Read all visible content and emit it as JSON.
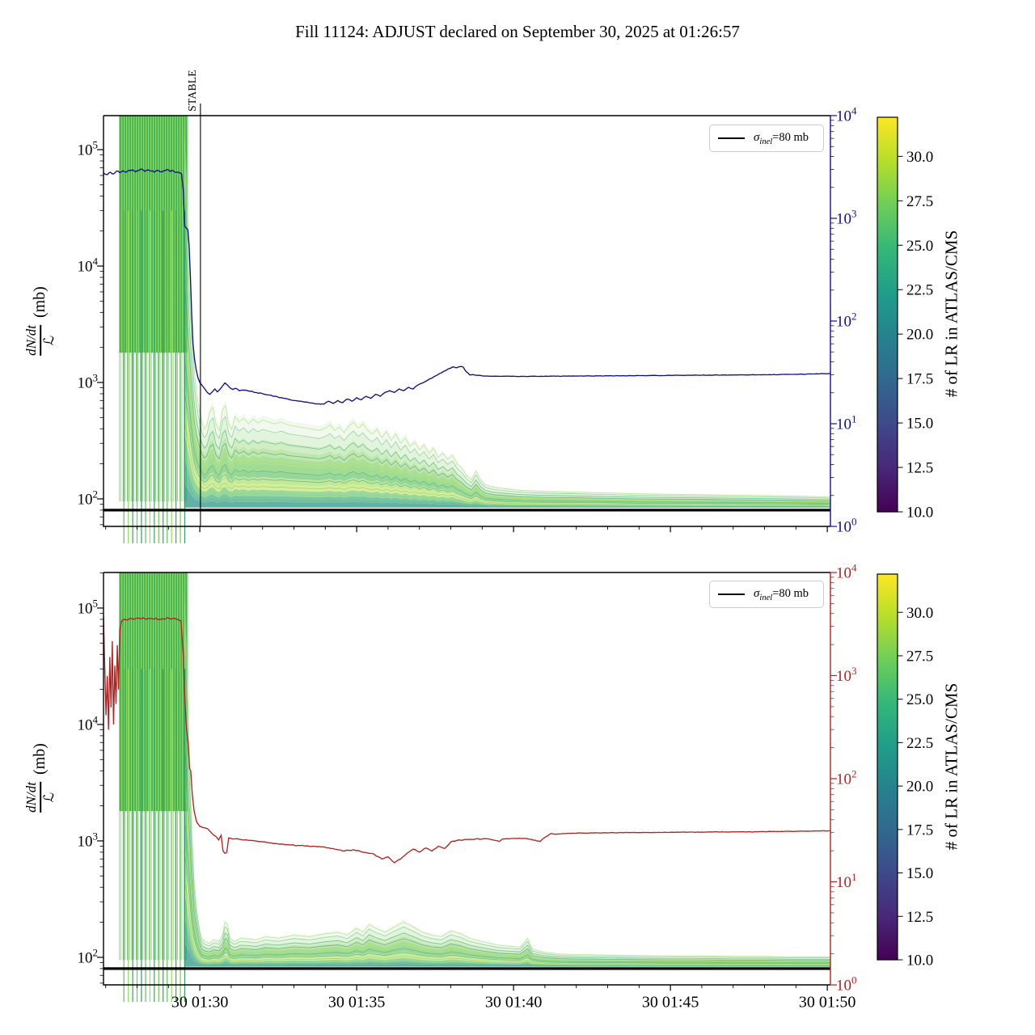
{
  "chart_data": {
    "type": "line",
    "title": "Fill 11124: ADJUST declared on September 30, 2025 at 01:26:57",
    "y_axis": {
      "numerator": "dN/dt",
      "denominator": "ℒ",
      "unit": "(mb)",
      "scale": "log",
      "tick_exponents": [
        2,
        3,
        4,
        5
      ]
    },
    "right_axis": {
      "scale": "log",
      "tick_exponents": [
        0,
        1,
        2,
        3,
        4
      ]
    },
    "x_axis": {
      "range": [
        26.93,
        50.1
      ],
      "major_ticks": [
        {
          "t": 30,
          "label": "30 01:30"
        },
        {
          "t": 35,
          "label": "30 01:35"
        },
        {
          "t": 40,
          "label": "30 01:40"
        },
        {
          "t": 45,
          "label": "30 01:45"
        },
        {
          "t": 50,
          "label": "30 01:50"
        }
      ],
      "minor_step": 1
    },
    "legend": {
      "sigma": "σ",
      "sub": "inel",
      "rest": "=80 mb",
      "line_color": "#000000"
    },
    "stable": {
      "t": 30.02,
      "label": "STABLE"
    },
    "colorbar": {
      "label": "# of LR in ATLAS/CMS",
      "vmin": 10,
      "vmax": 32.2,
      "ticks": [
        {
          "v": 10.0,
          "label": "10.0"
        },
        {
          "v": 12.5,
          "label": "12.5"
        },
        {
          "v": 15.0,
          "label": "15.0"
        },
        {
          "v": 17.5,
          "label": "17.5"
        },
        {
          "v": 20.0,
          "label": "20.0"
        },
        {
          "v": 22.5,
          "label": "22.5"
        },
        {
          "v": 25.0,
          "label": "25.0"
        },
        {
          "v": 27.5,
          "label": "27.5"
        },
        {
          "v": 30.0,
          "label": "30.0"
        }
      ],
      "viridis": [
        "#440154",
        "#482878",
        "#3e4989",
        "#31688e",
        "#26828e",
        "#1f9e89",
        "#35b779",
        "#6ece58",
        "#b5de2b",
        "#fde725"
      ]
    },
    "band_palette": [
      [
        "#ddf0d8",
        0.4
      ],
      [
        "#bfe7b2",
        0.45
      ],
      [
        "#a2dd8a",
        0.5
      ],
      [
        "#8ad468",
        0.55
      ],
      [
        "#74cc53",
        0.6
      ],
      [
        "#62c44f",
        0.6
      ],
      [
        "#52bb57",
        0.6
      ],
      [
        "#8fd747",
        0.55
      ],
      [
        "#aedc35",
        0.5
      ],
      [
        "#57be63",
        0.6
      ],
      [
        "#33a873",
        0.65
      ],
      [
        "#1f8e80",
        0.7
      ]
    ],
    "strand_palette": [
      "#8fd744",
      "#4db56a",
      "#2d9d76",
      "#1f8a82",
      "#a8dc32",
      "#3fae53",
      "#27957c",
      "#6cc94e"
    ],
    "stripe_palette": [
      "#5ec155",
      "#8edd5e",
      "#3aa55c",
      "#6fcb4f",
      "#2f9e5f"
    ],
    "panels": [
      {
        "name": "top",
        "line_color": "#10108c",
        "ylim": [
          58,
          196000
        ],
        "sigma_mb": 80,
        "show_stable": true,
        "injection": {
          "t0": 27.42,
          "t1": 29.62,
          "stripes": [
            27.58,
            27.72,
            27.86,
            28.0,
            28.14,
            28.27,
            28.41,
            28.55,
            28.69,
            28.83,
            28.96,
            29.1,
            29.24,
            29.38,
            29.52
          ]
        },
        "line": {
          "t": [
            26.93,
            27.05,
            27.15,
            27.25,
            27.35,
            27.45,
            27.55,
            27.65,
            27.75,
            27.85,
            27.95,
            28.05,
            28.15,
            28.25,
            28.35,
            28.45,
            28.55,
            28.65,
            28.75,
            28.85,
            28.95,
            29.05,
            29.15,
            29.25,
            29.35,
            29.42,
            29.47,
            29.52,
            29.58,
            29.62,
            29.66,
            29.7,
            29.74,
            29.78,
            29.83,
            29.88,
            29.94,
            30.0,
            30.08,
            30.16,
            30.24,
            30.32,
            30.4,
            30.48,
            30.56,
            30.64,
            30.72,
            30.8,
            30.88,
            30.96,
            31.05,
            31.15,
            31.25,
            31.4,
            31.6,
            31.8,
            32.0,
            32.2,
            32.4,
            32.6,
            32.8,
            33.0,
            33.2,
            33.4,
            33.6,
            33.8,
            33.95,
            34.1,
            34.25,
            34.4,
            34.55,
            34.7,
            34.85,
            35.0,
            35.15,
            35.3,
            35.45,
            35.6,
            35.75,
            35.9,
            36.05,
            36.2,
            36.35,
            36.5,
            36.65,
            36.8,
            36.95,
            37.1,
            37.25,
            37.4,
            37.55,
            37.7,
            37.85,
            38.0,
            38.1,
            38.2,
            38.3,
            38.4,
            38.5,
            38.6,
            38.7,
            38.85,
            39.0,
            39.3,
            39.7,
            40.2,
            41.0,
            42.0,
            43.0,
            44.0,
            45.0,
            46.0,
            47.0,
            48.0,
            49.0,
            49.6,
            50.1
          ],
          "v": [
            63000,
            61000,
            64000,
            62000,
            65500,
            63500,
            66000,
            64000,
            66500,
            67000,
            64500,
            66000,
            68000,
            65000,
            67000,
            65500,
            64000,
            66500,
            64500,
            66000,
            67500,
            65000,
            66000,
            64000,
            63500,
            62000,
            45000,
            22000,
            21000,
            20500,
            15000,
            8000,
            4000,
            2200,
            1600,
            1300,
            1100,
            1000,
            940,
            880,
            820,
            790,
            830,
            880,
            830,
            870,
            930,
            990,
            950,
            900,
            870,
            890,
            850,
            860,
            840,
            820,
            800,
            780,
            760,
            740,
            720,
            700,
            690,
            680,
            665,
            655,
            650,
            690,
            660,
            700,
            670,
            720,
            690,
            740,
            710,
            760,
            730,
            790,
            760,
            820,
            850,
            820,
            880,
            850,
            910,
            880,
            950,
            990,
            1040,
            1090,
            1150,
            1210,
            1270,
            1330,
            1360,
            1340,
            1370,
            1350,
            1230,
            1160,
            1170,
            1150,
            1140,
            1130,
            1130,
            1125,
            1130,
            1135,
            1140,
            1145,
            1150,
            1155,
            1160,
            1165,
            1175,
            1185,
            1195
          ]
        },
        "band": {
          "t": [
            29.5,
            29.58,
            29.66,
            29.74,
            29.82,
            29.9,
            29.98,
            30.06,
            30.14,
            30.22,
            30.32,
            30.42,
            30.52,
            30.62,
            30.72,
            30.82,
            30.92,
            31.02,
            31.12,
            31.25,
            31.4,
            31.55,
            31.7,
            31.85,
            32.0,
            32.2,
            32.4,
            32.6,
            32.8,
            33.0,
            33.2,
            33.4,
            33.6,
            33.8,
            34.0,
            34.15,
            34.3,
            34.45,
            34.6,
            34.75,
            34.9,
            35.05,
            35.2,
            35.35,
            35.5,
            35.65,
            35.8,
            35.95,
            36.1,
            36.25,
            36.4,
            36.55,
            36.7,
            36.85,
            37.0,
            37.15,
            37.3,
            37.45,
            37.6,
            37.75,
            37.9,
            38.05,
            38.2,
            38.35,
            38.5,
            38.65,
            38.8,
            38.95,
            39.1,
            39.4,
            39.8,
            40.3,
            41.0,
            42.0,
            43.0,
            44.0,
            45.0,
            46.0,
            47.0,
            48.0,
            49.0,
            50.1
          ],
          "top": [
            150000,
            60000,
            15000,
            4000,
            1500,
            900,
            650,
            500,
            430,
            460,
            620,
            680,
            470,
            420,
            640,
            700,
            480,
            430,
            560,
            500,
            540,
            480,
            530,
            490,
            520,
            500,
            480,
            500,
            470,
            460,
            450,
            440,
            430,
            420,
            440,
            470,
            420,
            450,
            400,
            460,
            500,
            440,
            480,
            420,
            390,
            430,
            360,
            410,
            340,
            390,
            320,
            360,
            300,
            330,
            280,
            310,
            260,
            290,
            240,
            260,
            230,
            250,
            210,
            190,
            165,
            150,
            180,
            150,
            135,
            128,
            124,
            120,
            118,
            116,
            114,
            112,
            111,
            110,
            109,
            108,
            107,
            105
          ],
          "bot": 84
        }
      },
      {
        "name": "bottom",
        "line_color": "#b22222",
        "ylim": [
          58,
          202000
        ],
        "sigma_mb": 80,
        "show_stable": false,
        "injection": {
          "t0": 27.42,
          "t1": 29.62,
          "stripes": [
            27.58,
            27.72,
            27.86,
            28.0,
            28.14,
            28.27,
            28.41,
            28.55,
            28.69,
            28.83,
            28.96,
            29.1,
            29.24,
            29.38,
            29.52
          ]
        },
        "line": {
          "t": [
            26.93,
            26.97,
            27.01,
            27.05,
            27.09,
            27.13,
            27.17,
            27.21,
            27.25,
            27.29,
            27.33,
            27.37,
            27.41,
            27.45,
            27.5,
            27.6,
            27.7,
            27.8,
            27.9,
            28.0,
            28.1,
            28.2,
            28.3,
            28.4,
            28.5,
            28.6,
            28.7,
            28.8,
            28.9,
            29.0,
            29.1,
            29.2,
            29.3,
            29.4,
            29.47,
            29.53,
            29.58,
            29.63,
            29.67,
            29.71,
            29.76,
            29.82,
            29.9,
            30.0,
            30.1,
            30.25,
            30.4,
            30.5,
            30.6,
            30.68,
            30.74,
            30.8,
            30.86,
            30.92,
            31.0,
            31.1,
            31.3,
            31.6,
            32.0,
            32.4,
            32.8,
            33.2,
            33.6,
            34.0,
            34.3,
            34.6,
            34.9,
            35.2,
            35.5,
            35.8,
            36.0,
            36.2,
            36.4,
            36.6,
            36.8,
            37.0,
            37.2,
            37.4,
            37.6,
            37.8,
            38.0,
            38.2,
            38.4,
            38.6,
            38.8,
            39.2,
            39.55,
            39.65,
            40.0,
            40.4,
            40.85,
            40.95,
            41.2,
            41.35,
            41.6,
            42.0,
            42.5,
            43.0,
            44.0,
            45.0,
            46.0,
            47.0,
            48.0,
            49.0,
            49.6,
            50.1
          ],
          "v": [
            85000,
            30000,
            12000,
            26000,
            9000,
            38000,
            14000,
            52000,
            10000,
            32000,
            15000,
            48000,
            20000,
            65000,
            76000,
            80000,
            79000,
            81500,
            80000,
            82000,
            80500,
            82500,
            80000,
            81500,
            80500,
            82000,
            80000,
            81000,
            80500,
            82000,
            80500,
            81500,
            80000,
            78000,
            40000,
            15000,
            9000,
            6800,
            4200,
            4000,
            2500,
            1800,
            1450,
            1330,
            1300,
            1270,
            1150,
            1100,
            1020,
            1120,
            820,
            780,
            800,
            1060,
            1050,
            1040,
            1030,
            1010,
            980,
            950,
            930,
            910,
            900,
            880,
            850,
            820,
            840,
            800,
            780,
            700,
            730,
            650,
            700,
            780,
            850,
            800,
            870,
            820,
            900,
            860,
            980,
            1010,
            1020,
            1030,
            1040,
            1040,
            990,
            1040,
            1050,
            1050,
            990,
            1050,
            1160,
            1140,
            1155,
            1165,
            1170,
            1175,
            1180,
            1185,
            1190,
            1195,
            1200,
            1210,
            1215,
            1220
          ]
        },
        "band": {
          "t": [
            29.5,
            29.58,
            29.66,
            29.74,
            29.82,
            29.9,
            29.98,
            30.06,
            30.16,
            30.3,
            30.45,
            30.6,
            30.72,
            30.8,
            30.88,
            30.96,
            31.1,
            31.3,
            31.55,
            31.8,
            32.1,
            32.5,
            33.0,
            33.5,
            34.0,
            34.4,
            34.7,
            35.0,
            35.2,
            35.4,
            35.6,
            35.9,
            36.2,
            36.5,
            36.8,
            37.1,
            37.4,
            37.7,
            38.0,
            38.3,
            38.6,
            39.0,
            39.5,
            40.2,
            40.45,
            40.6,
            41.0,
            41.5,
            42.0,
            43.0,
            44.0,
            45.0,
            46.0,
            47.0,
            48.0,
            49.0,
            50.1
          ],
          "top": [
            140000,
            50000,
            9000,
            1500,
            500,
            280,
            190,
            150,
            140,
            135,
            145,
            140,
            160,
            210,
            200,
            150,
            140,
            150,
            148,
            145,
            155,
            150,
            160,
            155,
            165,
            170,
            160,
            185,
            170,
            200,
            185,
            170,
            190,
            210,
            190,
            170,
            160,
            155,
            175,
            165,
            150,
            140,
            130,
            125,
            150,
            120,
            112,
            108,
            107,
            106,
            105,
            104,
            104,
            103,
            103,
            102,
            102
          ],
          "bot": 83
        }
      }
    ]
  }
}
